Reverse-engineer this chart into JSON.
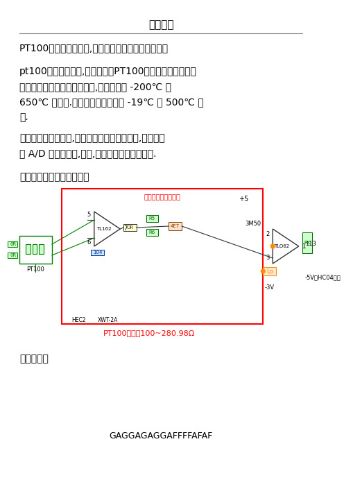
{
  "title": "精品文档",
  "line1": "PT100与热敏电阻相反,热敏电阻温度越高电阻值越小",
  "para1_line1": "pt100温度测量电路,温度传感器PT100是一种稳定性和线性",
  "para1_line2": "都比较好的铂丝热电阻传感器,可以工作在 -200℃ 至",
  "para1_line3": "650℃ 的范围.本电路选择其工作在 -19℃ 至 500℃ 范",
  "para1_line4": "围.",
  "para2_line1": "整个电路分为两部分,一是传感器前置放大电路,一是单片",
  "para2_line2": "机 A/D 转换和显示,控制,软件非线性校正等部分.",
  "para3": "前置放大部分原理图如下：",
  "circuit_label": "传感器前置放大电路",
  "pt100_input_label": "PT100输入：100~280.98Ω",
  "work_label": "工作原理：",
  "bottom_text": "GAGGAGAGGAFFFFAFAF",
  "bg_color": "#ffffff",
  "text_color": "#000000",
  "red_color": "#ff0000",
  "green_color": "#008000",
  "blue_color": "#0000ff",
  "orange_color": "#ff8c00"
}
